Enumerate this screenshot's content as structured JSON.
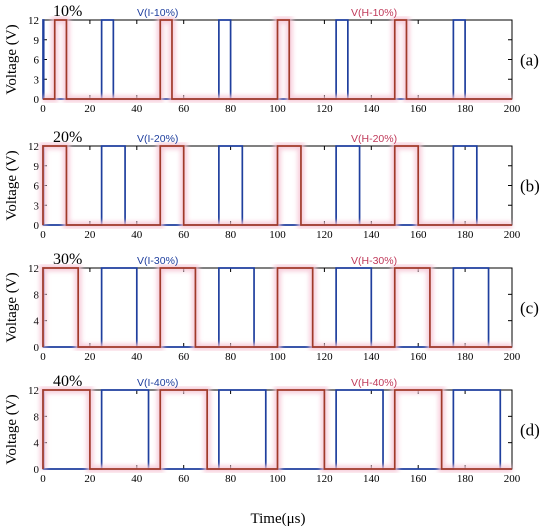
{
  "figure": {
    "xlabel": "Time(μs)",
    "ylabel": "Voltage (V)",
    "colors": {
      "series_i": "#1f3f9e",
      "series_h": "#a03a2a",
      "glow": "#f6c6d6",
      "legend_h": "#c03a5a"
    }
  },
  "chart_data": [
    {
      "type": "line",
      "panel_label": "(a)",
      "duty_label": "10%",
      "xlim": [
        0,
        200
      ],
      "ylim": [
        0,
        12
      ],
      "xticks": [
        0,
        20,
        40,
        60,
        80,
        100,
        120,
        140,
        160,
        180,
        200
      ],
      "yticks": [
        0,
        3,
        6,
        9,
        12
      ],
      "series": [
        {
          "name": "V(I-10%)",
          "pulses": [
            [
              0,
              0.3
            ],
            [
              25,
              30
            ],
            [
              75,
              80
            ],
            [
              125,
              130
            ],
            [
              175,
              180
            ]
          ],
          "high": 12,
          "low": 0
        },
        {
          "name": "V(H-10%)",
          "pulses": [
            [
              5,
              10
            ],
            [
              50,
              55
            ],
            [
              100,
              105
            ],
            [
              150,
              155
            ]
          ],
          "high": 12,
          "low": 0
        }
      ]
    },
    {
      "type": "line",
      "panel_label": "(b)",
      "duty_label": "20%",
      "xlim": [
        0,
        200
      ],
      "ylim": [
        0,
        12
      ],
      "xticks": [
        0,
        20,
        40,
        60,
        80,
        100,
        120,
        140,
        160,
        180,
        200
      ],
      "yticks": [
        0,
        3,
        6,
        9,
        12
      ],
      "series": [
        {
          "name": "V(I-20%)",
          "pulses": [
            [
              0,
              0.3
            ],
            [
              25,
              35
            ],
            [
              75,
              85
            ],
            [
              125,
              135
            ],
            [
              175,
              185
            ]
          ],
          "high": 12,
          "low": 0
        },
        {
          "name": "V(H-20%)",
          "pulses": [
            [
              0,
              10
            ],
            [
              50,
              60
            ],
            [
              100,
              110
            ],
            [
              150,
              160
            ]
          ],
          "high": 12,
          "low": 0
        }
      ]
    },
    {
      "type": "line",
      "panel_label": "(c)",
      "duty_label": "30%",
      "xlim": [
        0,
        200
      ],
      "ylim": [
        0,
        12
      ],
      "xticks": [
        0,
        20,
        40,
        60,
        80,
        100,
        120,
        140,
        160,
        180,
        200
      ],
      "yticks": [
        0,
        4,
        8,
        12
      ],
      "series": [
        {
          "name": "V(I-30%)",
          "pulses": [
            [
              0,
              0.3
            ],
            [
              25,
              40
            ],
            [
              75,
              90
            ],
            [
              125,
              140
            ],
            [
              175,
              190
            ]
          ],
          "high": 12,
          "low": 0
        },
        {
          "name": "V(H-30%)",
          "pulses": [
            [
              0,
              15
            ],
            [
              50,
              65
            ],
            [
              100,
              115
            ],
            [
              150,
              165
            ]
          ],
          "high": 12,
          "low": 0
        }
      ]
    },
    {
      "type": "line",
      "panel_label": "(d)",
      "duty_label": "40%",
      "xlim": [
        0,
        200
      ],
      "ylim": [
        0,
        12
      ],
      "xticks": [
        0,
        20,
        40,
        60,
        80,
        100,
        120,
        140,
        160,
        180,
        200
      ],
      "yticks": [
        0,
        4,
        8,
        12
      ],
      "series": [
        {
          "name": "V(I-40%)",
          "pulses": [
            [
              0,
              0.3
            ],
            [
              25,
              45
            ],
            [
              75,
              95
            ],
            [
              125,
              145
            ],
            [
              175,
              195
            ]
          ],
          "high": 12,
          "low": 0
        },
        {
          "name": "V(H-40%)",
          "pulses": [
            [
              0,
              20
            ],
            [
              50,
              70
            ],
            [
              100,
              120
            ],
            [
              150,
              170
            ]
          ],
          "high": 12,
          "low": 0
        }
      ]
    }
  ]
}
